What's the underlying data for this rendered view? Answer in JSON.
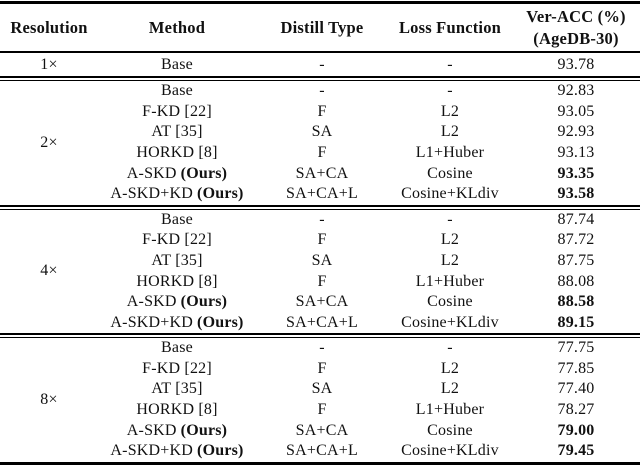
{
  "chart_data": {
    "type": "table",
    "title": "",
    "columns": [
      "Resolution",
      "Method",
      "Distill Type",
      "Loss Function",
      "Ver-ACC (%) (AgeDB-30)"
    ],
    "header": {
      "resolution": "Resolution",
      "method": "Method",
      "distill_type": "Distill Type",
      "loss_function": "Loss Function",
      "ver_acc_line1": "Ver-ACC (%)",
      "ver_acc_line2": "(AgeDB-30)"
    },
    "sections": [
      {
        "resolution": "1×",
        "rows": [
          {
            "method": "Base",
            "suffix": "",
            "distill_type": "-",
            "loss_function": "-",
            "ver_acc": "93.78",
            "bold": false
          }
        ]
      },
      {
        "resolution": "2×",
        "rows": [
          {
            "method": "Base",
            "suffix": "",
            "distill_type": "-",
            "loss_function": "-",
            "ver_acc": "92.83",
            "bold": false
          },
          {
            "method": "F-KD [22]",
            "suffix": "",
            "distill_type": "F",
            "loss_function": "L2",
            "ver_acc": "93.05",
            "bold": false
          },
          {
            "method": "AT [35]",
            "suffix": "",
            "distill_type": "SA",
            "loss_function": "L2",
            "ver_acc": "92.93",
            "bold": false
          },
          {
            "method": "HORKD [8]",
            "suffix": "",
            "distill_type": "F",
            "loss_function": "L1+Huber",
            "ver_acc": "93.13",
            "bold": false
          },
          {
            "method": "A-SKD",
            "suffix": "(Ours)",
            "distill_type": "SA+CA",
            "loss_function": "Cosine",
            "ver_acc": "93.35",
            "bold": true
          },
          {
            "method": "A-SKD+KD",
            "suffix": "(Ours)",
            "distill_type": "SA+CA+L",
            "loss_function": "Cosine+KLdiv",
            "ver_acc": "93.58",
            "bold": true
          }
        ]
      },
      {
        "resolution": "4×",
        "rows": [
          {
            "method": "Base",
            "suffix": "",
            "distill_type": "-",
            "loss_function": "-",
            "ver_acc": "87.74",
            "bold": false
          },
          {
            "method": "F-KD [22]",
            "suffix": "",
            "distill_type": "F",
            "loss_function": "L2",
            "ver_acc": "87.72",
            "bold": false
          },
          {
            "method": "AT [35]",
            "suffix": "",
            "distill_type": "SA",
            "loss_function": "L2",
            "ver_acc": "87.75",
            "bold": false
          },
          {
            "method": "HORKD [8]",
            "suffix": "",
            "distill_type": "F",
            "loss_function": "L1+Huber",
            "ver_acc": "88.08",
            "bold": false
          },
          {
            "method": "A-SKD",
            "suffix": "(Ours)",
            "distill_type": "SA+CA",
            "loss_function": "Cosine",
            "ver_acc": "88.58",
            "bold": true
          },
          {
            "method": "A-SKD+KD",
            "suffix": "(Ours)",
            "distill_type": "SA+CA+L",
            "loss_function": "Cosine+KLdiv",
            "ver_acc": "89.15",
            "bold": true
          }
        ]
      },
      {
        "resolution": "8×",
        "rows": [
          {
            "method": "Base",
            "suffix": "",
            "distill_type": "-",
            "loss_function": "-",
            "ver_acc": "77.75",
            "bold": false
          },
          {
            "method": "F-KD [22]",
            "suffix": "",
            "distill_type": "F",
            "loss_function": "L2",
            "ver_acc": "77.85",
            "bold": false
          },
          {
            "method": "AT [35]",
            "suffix": "",
            "distill_type": "SA",
            "loss_function": "L2",
            "ver_acc": "77.40",
            "bold": false
          },
          {
            "method": "HORKD [8]",
            "suffix": "",
            "distill_type": "F",
            "loss_function": "L1+Huber",
            "ver_acc": "78.27",
            "bold": false
          },
          {
            "method": "A-SKD",
            "suffix": "(Ours)",
            "distill_type": "SA+CA",
            "loss_function": "Cosine",
            "ver_acc": "79.00",
            "bold": true
          },
          {
            "method": "A-SKD+KD",
            "suffix": "(Ours)",
            "distill_type": "SA+CA+L",
            "loss_function": "Cosine+KLdiv",
            "ver_acc": "79.45",
            "bold": true
          }
        ]
      }
    ],
    "layout_hints": {
      "grid": "horizontal rules only; thick top and bottom rules; double rules between resolution sections",
      "text_color": "#111111",
      "background_color": "#ffffff"
    }
  }
}
